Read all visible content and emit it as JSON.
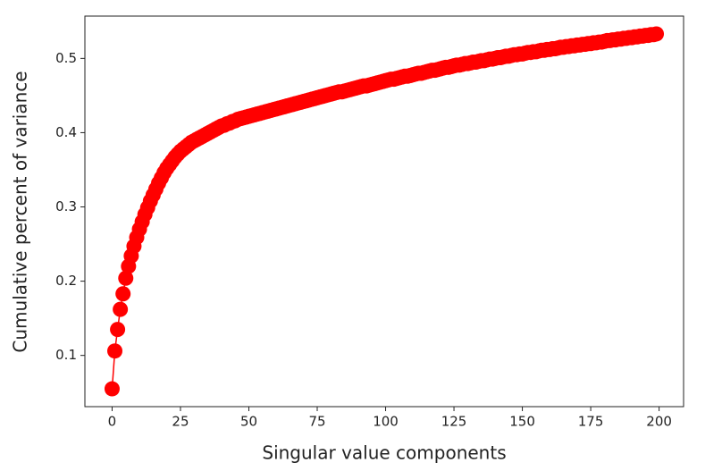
{
  "chart_data": {
    "type": "line",
    "xlabel": "Singular value components",
    "ylabel": "Cumulative percent of variance",
    "x": [
      0,
      1,
      2,
      3,
      4,
      5,
      6,
      7,
      8,
      9,
      10,
      11,
      12,
      13,
      14,
      15,
      16,
      17,
      18,
      19,
      20,
      21,
      22,
      23,
      24,
      25,
      26,
      27,
      28,
      29,
      30,
      31,
      32,
      33,
      34,
      35,
      36,
      37,
      38,
      39,
      40,
      41,
      42,
      43,
      44,
      45,
      46,
      47,
      48,
      49,
      50,
      51,
      52,
      53,
      54,
      55,
      56,
      57,
      58,
      59,
      60,
      61,
      62,
      63,
      64,
      65,
      66,
      67,
      68,
      69,
      70,
      71,
      72,
      73,
      74,
      75,
      76,
      77,
      78,
      79,
      80,
      81,
      82,
      83,
      84,
      85,
      86,
      87,
      88,
      89,
      90,
      91,
      92,
      93,
      94,
      95,
      96,
      97,
      98,
      99,
      100,
      101,
      102,
      103,
      104,
      105,
      106,
      107,
      108,
      109,
      110,
      111,
      112,
      113,
      114,
      115,
      116,
      117,
      118,
      119,
      120,
      121,
      122,
      123,
      124,
      125,
      126,
      127,
      128,
      129,
      130,
      131,
      132,
      133,
      134,
      135,
      136,
      137,
      138,
      139,
      140,
      141,
      142,
      143,
      144,
      145,
      146,
      147,
      148,
      149,
      150,
      151,
      152,
      153,
      154,
      155,
      156,
      157,
      158,
      159,
      160,
      161,
      162,
      163,
      164,
      165,
      166,
      167,
      168,
      169,
      170,
      171,
      172,
      173,
      174,
      175,
      176,
      177,
      178,
      179,
      180,
      181,
      182,
      183,
      184,
      185,
      186,
      187,
      188,
      189,
      190,
      191,
      192,
      193,
      194,
      195,
      196,
      197,
      198,
      199
    ],
    "values": [
      0.055,
      0.106,
      0.135,
      0.162,
      0.183,
      0.204,
      0.22,
      0.234,
      0.247,
      0.259,
      0.27,
      0.28,
      0.29,
      0.299,
      0.308,
      0.316,
      0.324,
      0.332,
      0.339,
      0.346,
      0.352,
      0.357,
      0.362,
      0.367,
      0.371,
      0.375,
      0.378,
      0.381,
      0.384,
      0.387,
      0.389,
      0.391,
      0.393,
      0.395,
      0.397,
      0.399,
      0.401,
      0.403,
      0.405,
      0.407,
      0.409,
      0.41,
      0.412,
      0.413,
      0.415,
      0.416,
      0.418,
      0.419,
      0.42,
      0.421,
      0.422,
      0.423,
      0.424,
      0.425,
      0.426,
      0.427,
      0.428,
      0.429,
      0.43,
      0.431,
      0.432,
      0.433,
      0.434,
      0.435,
      0.436,
      0.437,
      0.438,
      0.439,
      0.44,
      0.441,
      0.442,
      0.443,
      0.444,
      0.445,
      0.446,
      0.447,
      0.448,
      0.449,
      0.45,
      0.451,
      0.452,
      0.453,
      0.454,
      0.455,
      0.455,
      0.456,
      0.457,
      0.458,
      0.459,
      0.46,
      0.461,
      0.462,
      0.463,
      0.463,
      0.464,
      0.465,
      0.466,
      0.467,
      0.468,
      0.469,
      0.47,
      0.471,
      0.472,
      0.472,
      0.473,
      0.474,
      0.475,
      0.476,
      0.476,
      0.477,
      0.478,
      0.479,
      0.48,
      0.48,
      0.481,
      0.482,
      0.483,
      0.484,
      0.484,
      0.485,
      0.486,
      0.487,
      0.488,
      0.488,
      0.489,
      0.49,
      0.491,
      0.491,
      0.492,
      0.493,
      0.493,
      0.494,
      0.495,
      0.495,
      0.496,
      0.497,
      0.497,
      0.498,
      0.499,
      0.499,
      0.5,
      0.501,
      0.501,
      0.502,
      0.503,
      0.503,
      0.504,
      0.505,
      0.505,
      0.506,
      0.506,
      0.507,
      0.508,
      0.508,
      0.509,
      0.509,
      0.51,
      0.511,
      0.511,
      0.512,
      0.512,
      0.513,
      0.513,
      0.514,
      0.515,
      0.515,
      0.516,
      0.516,
      0.517,
      0.517,
      0.518,
      0.518,
      0.519,
      0.519,
      0.52,
      0.52,
      0.521,
      0.521,
      0.522,
      0.522,
      0.523,
      0.524,
      0.524,
      0.525,
      0.525,
      0.526,
      0.526,
      0.527,
      0.527,
      0.528,
      0.528,
      0.529,
      0.529,
      0.53,
      0.53,
      0.531,
      0.531,
      0.532,
      0.532,
      0.533
    ],
    "color": "#ff0000",
    "xlim": [
      -9.95,
      208.95
    ],
    "xticks": [
      0,
      25,
      50,
      75,
      100,
      125,
      150,
      175,
      200
    ],
    "ylim": [
      0.031,
      0.557
    ],
    "yticks": [
      0.1,
      0.2,
      0.3,
      0.4,
      0.5
    ],
    "grid": false
  }
}
